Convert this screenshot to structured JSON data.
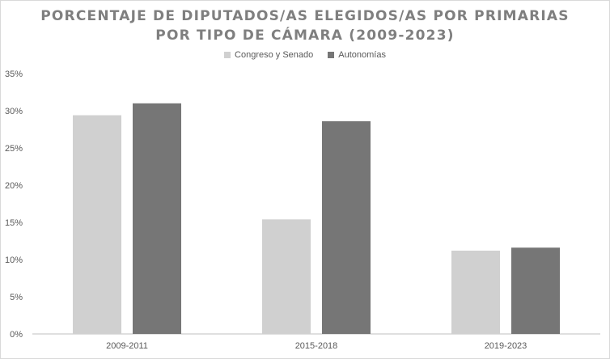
{
  "chart_data": {
    "type": "bar",
    "title_lines": [
      "PORCENTAJE DE DIPUTADOS/AS ELEGIDOS/AS POR PRIMARIAS",
      "POR TIPO DE CÁMARA (2009-2023)"
    ],
    "categories": [
      "2009-2011",
      "2015-2018",
      "2019-2023"
    ],
    "series": [
      {
        "name": "Congreso y Senado",
        "values": [
          0.294,
          0.154,
          0.112
        ],
        "color": "#d0d0d0"
      },
      {
        "name": "Autonomías",
        "values": [
          0.31,
          0.286,
          0.116
        ],
        "color": "#767676"
      }
    ],
    "ylim": [
      0,
      0.35
    ],
    "yticks": [
      "0%",
      "5%",
      "10%",
      "15%",
      "20%",
      "25%",
      "30%",
      "35%"
    ],
    "xlabel": "",
    "ylabel": "",
    "grid": false,
    "legend_position": "top-center"
  }
}
